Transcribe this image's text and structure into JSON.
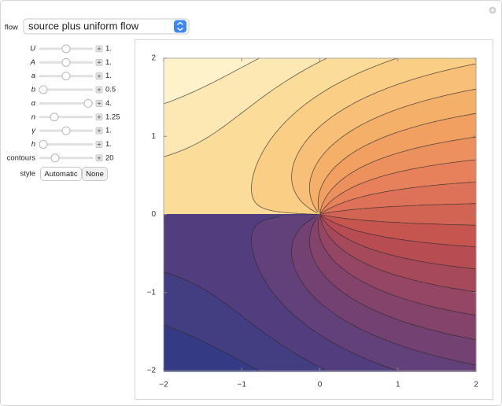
{
  "flow": {
    "label": "flow",
    "value": "source plus uniform flow"
  },
  "controls": [
    {
      "label": "U",
      "value": "1."
    },
    {
      "label": "A",
      "value": "1."
    },
    {
      "label": "a",
      "value": "1."
    },
    {
      "label": "b",
      "value": "0.5"
    },
    {
      "label": "α",
      "value": "4."
    },
    {
      "label": "n",
      "value": "1.25"
    },
    {
      "label": "γ",
      "value": "1."
    },
    {
      "label": "h",
      "value": "1."
    },
    {
      "label": "contours",
      "value": "20"
    }
  ],
  "style": {
    "label": "style",
    "options": [
      "Automatic",
      "None"
    ]
  },
  "chart_data": {
    "type": "contour",
    "xlim": [
      -2,
      2
    ],
    "ylim": [
      -2,
      2
    ],
    "xticks": [
      {
        "value": -2,
        "label": "−2"
      },
      {
        "value": -1,
        "label": "−1"
      },
      0,
      1,
      2
    ],
    "yticks": [
      {
        "value": -2,
        "label": "−2"
      },
      {
        "value": -1,
        "label": "−1"
      },
      0,
      1,
      2
    ]
  }
}
